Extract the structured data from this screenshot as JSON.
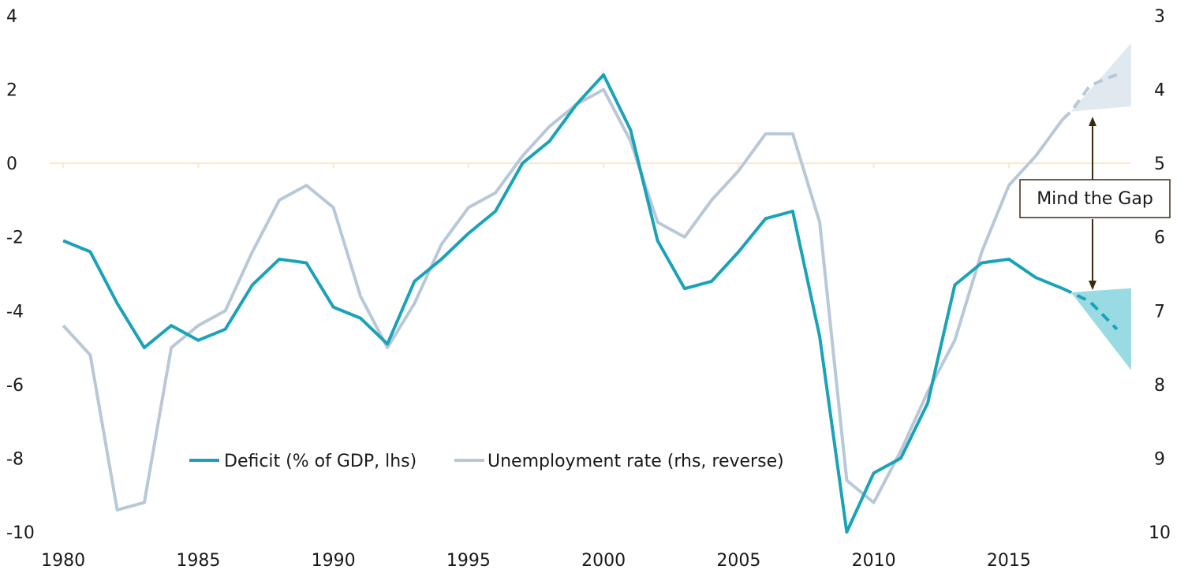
{
  "chart_data": {
    "type": "line",
    "x": [
      1980,
      1981,
      1982,
      1983,
      1984,
      1985,
      1986,
      1987,
      1988,
      1989,
      1990,
      1991,
      1992,
      1993,
      1994,
      1995,
      1996,
      1997,
      1998,
      1999,
      2000,
      2001,
      2002,
      2003,
      2004,
      2005,
      2006,
      2007,
      2008,
      2009,
      2010,
      2011,
      2012,
      2013,
      2014,
      2015,
      2016,
      2017
    ],
    "series": [
      {
        "name": "Deficit (% of GDP, lhs)",
        "axis": "left",
        "color": "#1aa3b8",
        "values": [
          -2.1,
          -2.4,
          -3.8,
          -5.0,
          -4.4,
          -4.8,
          -4.5,
          -3.3,
          -2.6,
          -2.7,
          -3.9,
          -4.2,
          -4.9,
          -3.2,
          -2.6,
          -1.9,
          -1.3,
          0.0,
          0.6,
          1.6,
          2.4,
          0.9,
          -2.1,
          -3.4,
          -3.2,
          -2.4,
          -1.5,
          -1.3,
          -4.7,
          -10.0,
          -8.4,
          -8.0,
          -6.5,
          -3.3,
          -2.7,
          -2.6,
          -3.1,
          -3.4
        ],
        "projection": {
          "x": [
            2017.3,
            2018,
            2018.6,
            2019
          ],
          "values": [
            -3.5,
            -3.75,
            -4.2,
            -4.5
          ],
          "fan_color": "#8fd6df"
        }
      },
      {
        "name": "Unemployment rate (rhs, reverse)",
        "axis": "right",
        "color": "#b9c8d8",
        "values": [
          7.2,
          7.6,
          9.7,
          9.6,
          7.5,
          7.2,
          7.0,
          6.2,
          5.5,
          5.3,
          5.6,
          6.8,
          7.5,
          6.9,
          6.1,
          5.6,
          5.4,
          4.9,
          4.5,
          4.2,
          4.0,
          4.7,
          5.8,
          6.0,
          5.5,
          5.1,
          4.6,
          4.6,
          5.8,
          9.3,
          9.6,
          8.9,
          8.1,
          7.4,
          6.2,
          5.3,
          4.9,
          4.4
        ],
        "projection": {
          "x": [
            2017.3,
            2018,
            2018.6,
            2019
          ],
          "values": [
            4.3,
            3.95,
            3.85,
            3.8
          ],
          "fan_color": "#dde6ee"
        }
      }
    ],
    "xlim": [
      1979.5,
      2019.5
    ],
    "xticks": [
      "1980",
      "1985",
      "1990",
      "1995",
      "2000",
      "2005",
      "2010",
      "2015"
    ],
    "ylim_left": [
      -10,
      4
    ],
    "yticks_left": [
      "4",
      "2",
      "0",
      "-2",
      "-4",
      "-6",
      "-8",
      "-10"
    ],
    "ylim_right": [
      3,
      10
    ],
    "right_axis_reversed": true,
    "yticks_right": [
      "3",
      "4",
      "5",
      "6",
      "7",
      "8",
      "9",
      "10"
    ],
    "zero_line_color": "#fbe8c4",
    "legend_position": "bottom-center",
    "annotation": "Mind the Gap",
    "annotation_arrow_color": "#3a2a10"
  }
}
